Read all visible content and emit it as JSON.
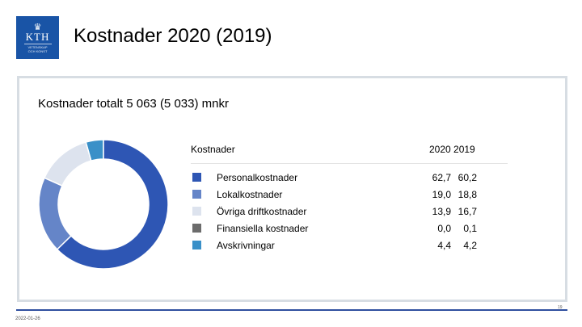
{
  "logo": {
    "name": "KTH",
    "sub_line1": "VETENSKAP",
    "sub_line2": "OCH KONST"
  },
  "slide": {
    "title": "Kostnader 2020 (2019)",
    "subtitle": "Kostnader totalt 5 063 (5 033) mnkr",
    "date": "2022-01-26",
    "page": "19"
  },
  "chart_data": {
    "type": "pie",
    "donut": true,
    "series_header": "Kostnader",
    "years_header": "2020 2019",
    "years": [
      "2020",
      "2019"
    ],
    "categories": [
      "Personalkostnader",
      "Lokalkostnader",
      "Övriga driftkostnader",
      "Finansiella kostnader",
      "Avskrivningar"
    ],
    "values_2020": [
      62.7,
      19.0,
      13.9,
      0.0,
      4.4
    ],
    "values_2019": [
      60.2,
      18.8,
      16.7,
      0.1,
      4.2
    ],
    "labels_2020": [
      "62,7",
      "19,0",
      "13,9",
      "0,0",
      "4,4"
    ],
    "labels_2019": [
      "60,2",
      "18,8",
      "16,7",
      "0,1",
      "4,2"
    ],
    "colors": [
      "#2e56b4",
      "#6585c8",
      "#dde3ee",
      "#6c6c6c",
      "#3a90c8"
    ]
  }
}
